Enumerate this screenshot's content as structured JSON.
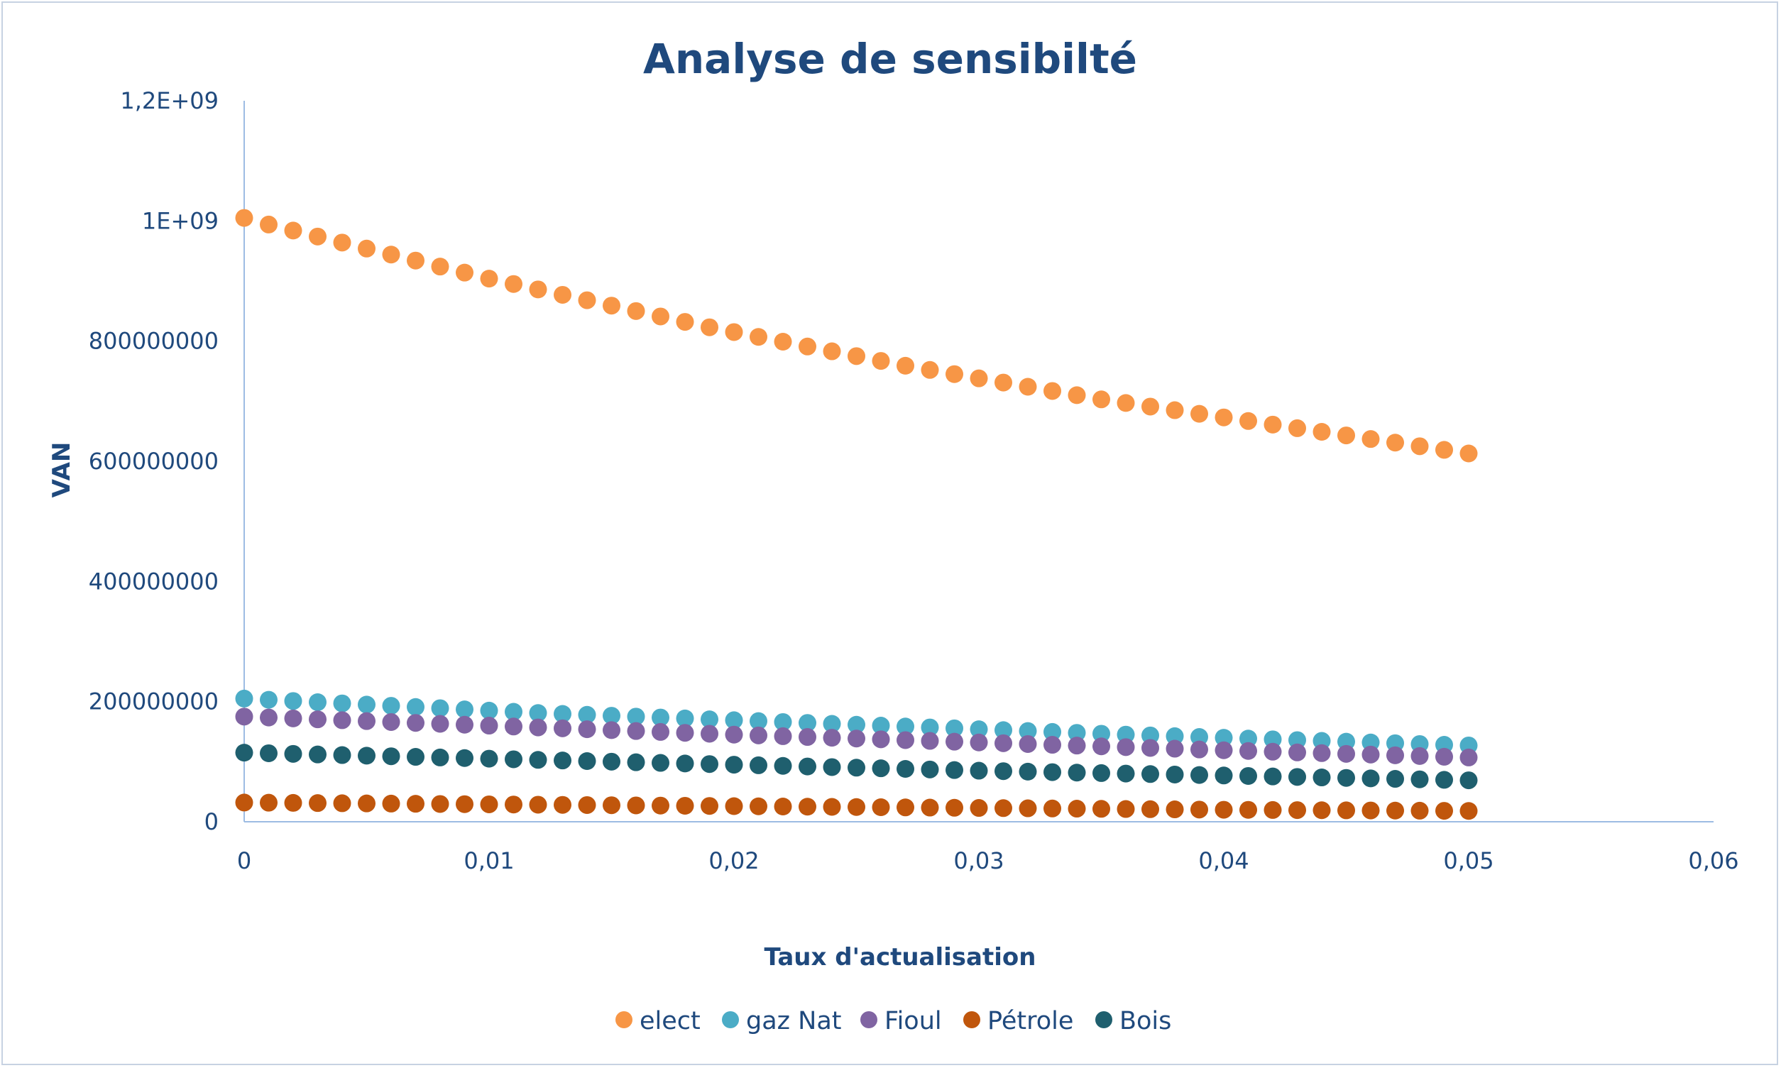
{
  "chart_data": {
    "type": "scatter",
    "title": "Analyse de sensibilté",
    "xlabel": "Taux d'actualisation",
    "ylabel": "VAN",
    "xlim": [
      0,
      0.06
    ],
    "ylim": [
      0,
      1200000000
    ],
    "x_ticks": [
      0,
      0.01,
      0.02,
      0.03,
      0.04,
      0.05,
      0.06
    ],
    "x_tick_labels": [
      "0",
      "0,01",
      "0,02",
      "0,03",
      "0,04",
      "0,05",
      "0,06"
    ],
    "y_ticks": [
      0,
      200000000,
      400000000,
      600000000,
      800000000,
      1000000000,
      1200000000
    ],
    "y_tick_labels": [
      "0",
      "200000000",
      "400000000",
      "600000000",
      "800000000",
      "1E+09",
      "1,2E+09"
    ],
    "grid": false,
    "legend_position": "bottom",
    "x": [
      0,
      0.001,
      0.002,
      0.003,
      0.004,
      0.005,
      0.006,
      0.007,
      0.008,
      0.009,
      0.01,
      0.011,
      0.012,
      0.013,
      0.014,
      0.015,
      0.016,
      0.017,
      0.018,
      0.019,
      0.02,
      0.021,
      0.022,
      0.023,
      0.024,
      0.025,
      0.026,
      0.027,
      0.028,
      0.029,
      0.03,
      0.031,
      0.032,
      0.033,
      0.034,
      0.035,
      0.036,
      0.037,
      0.038,
      0.039,
      0.04,
      0.041,
      0.042,
      0.043,
      0.044,
      0.045,
      0.046,
      0.047,
      0.048,
      0.049,
      0.05
    ],
    "series": [
      {
        "name": "elect",
        "color": "#f79646",
        "values": [
          1005000000,
          994000000,
          984000000,
          974000000,
          964000000,
          954000000,
          944000000,
          934000000,
          924000000,
          914000000,
          904000000,
          895000000,
          886000000,
          877000000,
          868000000,
          859000000,
          850000000,
          841000000,
          832000000,
          823000000,
          815000000,
          807000000,
          799000000,
          791000000,
          783000000,
          775000000,
          767000000,
          759000000,
          752000000,
          745000000,
          738000000,
          731000000,
          724000000,
          717000000,
          710000000,
          703000000,
          697000000,
          691000000,
          685000000,
          679000000,
          673000000,
          667000000,
          661000000,
          655000000,
          649000000,
          643000000,
          637000000,
          631000000,
          625000000,
          619000000,
          613000000
        ]
      },
      {
        "name": "gaz Nat",
        "color": "#4bacc6",
        "values": [
          205000000,
          203000000,
          201000000,
          199000000,
          197000000,
          195000000,
          193000000,
          191000000,
          189000000,
          187000000,
          185000000,
          183000000,
          181000000,
          179500000,
          178000000,
          176500000,
          175000000,
          173500000,
          172000000,
          170500000,
          169000000,
          167500000,
          166000000,
          164500000,
          163000000,
          161500000,
          160000000,
          158500000,
          157000000,
          155500000,
          154000000,
          152500000,
          151000000,
          149500000,
          148000000,
          146500000,
          145000000,
          143700000,
          142400000,
          141100000,
          139800000,
          138500000,
          137200000,
          135900000,
          134600000,
          133300000,
          132000000,
          130700000,
          129400000,
          128100000,
          127000000
        ]
      },
      {
        "name": "Fioul",
        "color": "#8064a2",
        "values": [
          175000000,
          173500000,
          172000000,
          170500000,
          169000000,
          167500000,
          166000000,
          164500000,
          163000000,
          161500000,
          160000000,
          158500000,
          157000000,
          155500000,
          154000000,
          152500000,
          151000000,
          149500000,
          148000000,
          146500000,
          145000000,
          143700000,
          142400000,
          141100000,
          139800000,
          138500000,
          137200000,
          135900000,
          134600000,
          133300000,
          132000000,
          130700000,
          129400000,
          128100000,
          126800000,
          125500000,
          124200000,
          122900000,
          121600000,
          120300000,
          119000000,
          117800000,
          116600000,
          115400000,
          114200000,
          113000000,
          111800000,
          110600000,
          109400000,
          108200000,
          107000000
        ]
      },
      {
        "name": "Pétrole",
        "color": "#c0560c",
        "values": [
          32000000,
          31700000,
          31400000,
          31100000,
          30800000,
          30500000,
          30200000,
          29900000,
          29600000,
          29300000,
          29000000,
          28700000,
          28400000,
          28100000,
          27800000,
          27500000,
          27200000,
          26900000,
          26600000,
          26300000,
          26000000,
          25700000,
          25400000,
          25100000,
          24800000,
          24500000,
          24200000,
          23900000,
          23600000,
          23300000,
          23000000,
          22700000,
          22400000,
          22100000,
          21800000,
          21500000,
          21200000,
          20900000,
          20600000,
          20300000,
          20000000,
          19800000,
          19600000,
          19400000,
          19200000,
          19000000,
          18800000,
          18600000,
          18400000,
          18200000,
          18000000
        ]
      },
      {
        "name": "Bois",
        "color": "#1f5f6e",
        "values": [
          115000000,
          114000000,
          113000000,
          112000000,
          111000000,
          110000000,
          109000000,
          108000000,
          107000000,
          106000000,
          105000000,
          104000000,
          103000000,
          102000000,
          101000000,
          100000000,
          99000000,
          98000000,
          97000000,
          96000000,
          95000000,
          94000000,
          93000000,
          92000000,
          91000000,
          90000000,
          89000000,
          88000000,
          87000000,
          86000000,
          85000000,
          84200000,
          83400000,
          82600000,
          81800000,
          81000000,
          80200000,
          79400000,
          78600000,
          77800000,
          77000000,
          76200000,
          75400000,
          74600000,
          73800000,
          73000000,
          72200000,
          71400000,
          70600000,
          69800000,
          69000000
        ]
      }
    ]
  }
}
